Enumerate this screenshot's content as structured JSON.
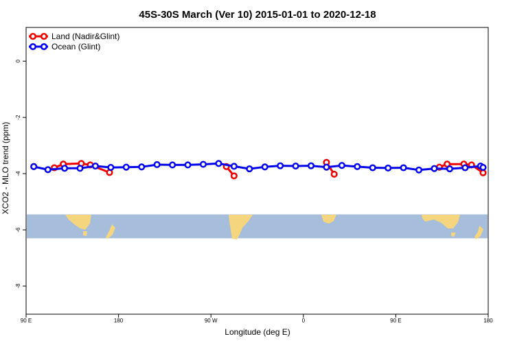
{
  "chart_data": {
    "type": "line",
    "title": "45S-30S March (Ver 10)   2015-01-01 to 2020-12-18",
    "xlabel": "Longitude (deg E)",
    "ylabel": "XCO2 - MLO trend (ppm)",
    "xlim": [
      90,
      450
    ],
    "ylim": [
      -9.0,
      1.2
    ],
    "x_ticks": [
      {
        "value": 90,
        "label": "90 E"
      },
      {
        "value": 162,
        "label": "180"
      },
      {
        "value": 234,
        "label": "90 W"
      },
      {
        "value": 306,
        "label": "0"
      },
      {
        "value": 378,
        "label": "90 E"
      },
      {
        "value": 450,
        "label": "180"
      }
    ],
    "y_ticks": [
      {
        "value": 0,
        "label": "0"
      },
      {
        "value": -2,
        "label": "-2"
      },
      {
        "value": -4,
        "label": "-4"
      },
      {
        "value": -6,
        "label": "-6"
      },
      {
        "value": -8,
        "label": "-8"
      }
    ],
    "grid": false,
    "legend_position": "top-left",
    "map_band": {
      "y_range": [
        -5.45,
        -6.3
      ],
      "ocean_color": "#a6bddb",
      "land_color": "#f5d67e"
    },
    "series": [
      {
        "name": "Land (Nadir&Glint)",
        "color": "#ee0000",
        "segments": [
          [
            [
              96,
              -3.75
            ]
          ],
          [
            [
              112,
              -3.79
            ],
            [
              119,
              -3.66
            ],
            [
              133,
              -3.64
            ],
            [
              140,
              -3.69
            ],
            [
              155,
              -3.96
            ]
          ],
          [
            [
              246,
              -3.75
            ],
            [
              252,
              -4.08
            ]
          ],
          [
            [
              324,
              -3.6
            ],
            [
              330,
              -4.02
            ]
          ],
          [
            [
              412,
              -3.77
            ],
            [
              418,
              -3.66
            ],
            [
              431,
              -3.66
            ],
            [
              437,
              -3.69
            ],
            [
              446,
              -3.97
            ]
          ]
        ]
      },
      {
        "name": "Ocean (Glint)",
        "color": "#0000ee",
        "segments": [
          [
            [
              96,
              -3.75
            ],
            [
              107,
              -3.86
            ],
            [
              120,
              -3.81
            ],
            [
              132,
              -3.81
            ],
            [
              144,
              -3.73
            ],
            [
              156,
              -3.78
            ],
            [
              168,
              -3.77
            ],
            [
              180,
              -3.76
            ],
            [
              192,
              -3.68
            ],
            [
              204,
              -3.69
            ],
            [
              216,
              -3.69
            ],
            [
              228,
              -3.67
            ],
            [
              240,
              -3.64
            ],
            [
              252,
              -3.74
            ],
            [
              264,
              -3.83
            ],
            [
              276,
              -3.76
            ],
            [
              288,
              -3.72
            ],
            [
              300,
              -3.73
            ],
            [
              312,
              -3.72
            ],
            [
              324,
              -3.77
            ],
            [
              336,
              -3.71
            ],
            [
              348,
              -3.75
            ],
            [
              360,
              -3.79
            ],
            [
              372,
              -3.8
            ],
            [
              384,
              -3.79
            ],
            [
              396,
              -3.87
            ],
            [
              408,
              -3.82
            ],
            [
              420,
              -3.83
            ],
            [
              432,
              -3.79
            ],
            [
              444,
              -3.73
            ],
            [
              446,
              -3.78
            ]
          ]
        ]
      }
    ]
  }
}
